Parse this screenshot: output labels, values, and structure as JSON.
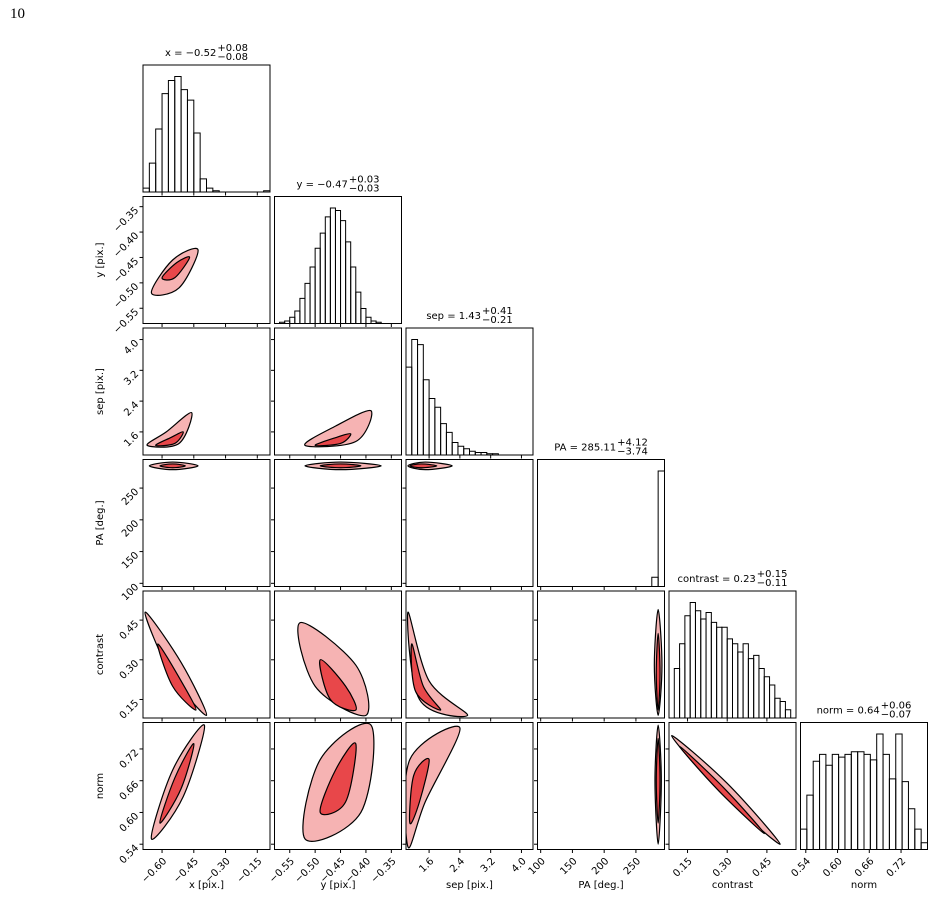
{
  "page_number": "10",
  "chart_data": {
    "type": "corner",
    "hist_color": "#000000",
    "contour_colors": [
      "#f6b3b3",
      "#e8474a"
    ],
    "variables": [
      {
        "label": "x [pix.]",
        "title": "x = −0.52",
        "title_plus": "+0.08",
        "title_minus": "−0.08",
        "xlim": [
          -0.69,
          -0.09
        ],
        "ticks": [
          {
            "value": -0.6,
            "label": "−0.60"
          },
          {
            "value": -0.45,
            "label": "−0.45"
          },
          {
            "value": -0.3,
            "label": "−0.30"
          },
          {
            "value": -0.15,
            "label": "−0.15"
          }
        ],
        "bins": [
          -0.69,
          -0.66,
          -0.63,
          -0.6,
          -0.57,
          -0.54,
          -0.51,
          -0.48,
          -0.45,
          -0.42,
          -0.39,
          -0.36,
          -0.33,
          -0.3,
          -0.27,
          -0.24,
          -0.21,
          -0.18,
          -0.15,
          -0.12,
          -0.09
        ],
        "counts": [
          3,
          22,
          48,
          75,
          85,
          88,
          78,
          70,
          45,
          10,
          3,
          1,
          0,
          0,
          0,
          0,
          0,
          0,
          0,
          1
        ],
        "contours": []
      },
      {
        "label": "y [pix.]",
        "title": "y = −0.47",
        "title_plus": "+0.03",
        "title_minus": "−0.03",
        "xlim": [
          -0.58,
          -0.33
        ],
        "ticks": [
          {
            "value": -0.55,
            "label": "−0.55"
          },
          {
            "value": -0.5,
            "label": "−0.50"
          },
          {
            "value": -0.45,
            "label": "−0.45"
          },
          {
            "value": -0.4,
            "label": "−0.40"
          },
          {
            "value": -0.35,
            "label": "−0.35"
          }
        ],
        "bins": [
          -0.58,
          -0.57,
          -0.56,
          -0.55,
          -0.54,
          -0.53,
          -0.52,
          -0.51,
          -0.5,
          -0.49,
          -0.48,
          -0.47,
          -0.46,
          -0.45,
          -0.44,
          -0.43,
          -0.42,
          -0.41,
          -0.4,
          -0.39,
          -0.38,
          -0.37,
          -0.36,
          -0.35,
          -0.34,
          -0.33
        ],
        "counts": [
          0,
          1,
          2,
          5,
          10,
          20,
          32,
          45,
          60,
          72,
          85,
          92,
          90,
          82,
          65,
          45,
          25,
          12,
          5,
          2,
          1,
          0,
          0,
          0,
          0
        ],
        "contours": [
          [
            [
              [
                -0.65,
                -0.52
              ],
              [
                -0.55,
                -0.455
              ],
              [
                -0.43,
                -0.435
              ],
              [
                -0.52,
                -0.51
              ]
            ],
            [
              [
                -0.6,
                -0.49
              ],
              [
                -0.53,
                -0.46
              ],
              [
                -0.47,
                -0.45
              ],
              [
                -0.54,
                -0.49
              ]
            ]
          ]
        ]
      },
      {
        "label": "sep [pix.]",
        "title": "sep = 1.43",
        "title_plus": "+0.41",
        "title_minus": "−0.21",
        "xlim": [
          1.0,
          4.3
        ],
        "ticks": [
          1.6,
          2.4,
          3.2,
          {
            "value": 4.0,
            "label": "4.0"
          }
        ],
        "bins": [
          1.0,
          1.15,
          1.3,
          1.45,
          1.6,
          1.75,
          1.9,
          2.05,
          2.2,
          2.35,
          2.5,
          2.65,
          2.8,
          2.95,
          3.1,
          3.25,
          3.4,
          3.55,
          3.7,
          3.85,
          4.0,
          4.15,
          4.3
        ],
        "counts": [
          70,
          92,
          88,
          60,
          45,
          38,
          25,
          18,
          10,
          7,
          5,
          3,
          2,
          2,
          1,
          1,
          0,
          0,
          0,
          0,
          0,
          0
        ],
        "contours": [
          [
            [
              [
                -0.67,
                1.25
              ],
              [
                -0.58,
                1.6
              ],
              [
                -0.46,
                2.1
              ],
              [
                -0.52,
                1.3
              ]
            ],
            [
              [
                -0.63,
                1.25
              ],
              [
                -0.56,
                1.45
              ],
              [
                -0.5,
                1.6
              ],
              [
                -0.54,
                1.3
              ]
            ]
          ],
          [
            [
              [
                -0.52,
                1.25
              ],
              [
                -0.46,
                1.75
              ],
              [
                -0.39,
                2.15
              ],
              [
                -0.42,
                1.35
              ]
            ],
            [
              [
                -0.5,
                1.25
              ],
              [
                -0.46,
                1.45
              ],
              [
                -0.43,
                1.55
              ],
              [
                -0.45,
                1.3
              ]
            ]
          ]
        ]
      },
      {
        "label": "PA [deg.]",
        "title": "PA = 285.11",
        "title_plus": "+4.12",
        "title_minus": "−3.74",
        "xlim": [
          95,
          295
        ],
        "ticks": [
          100,
          150,
          200,
          250
        ],
        "bins": [
          95,
          105,
          115,
          125,
          135,
          145,
          155,
          165,
          175,
          185,
          195,
          205,
          215,
          225,
          235,
          245,
          255,
          265,
          275,
          285,
          295
        ],
        "counts": [
          0,
          0,
          0,
          0,
          0,
          0,
          0,
          0,
          0,
          0,
          0,
          0,
          0,
          0,
          0,
          0,
          0,
          0,
          8,
          100
        ],
        "contours": [
          [
            [
              [
                -0.66,
                285
              ],
              [
                -0.55,
                291
              ],
              [
                -0.43,
                285
              ],
              [
                -0.55,
                279
              ]
            ],
            [
              [
                -0.61,
                285
              ],
              [
                -0.55,
                288
              ],
              [
                -0.49,
                285
              ],
              [
                -0.55,
                282
              ]
            ]
          ],
          [
            [
              [
                -0.52,
                285
              ],
              [
                -0.45,
                291
              ],
              [
                -0.37,
                285
              ],
              [
                -0.45,
                279
              ]
            ],
            [
              [
                -0.49,
                285
              ],
              [
                -0.45,
                288
              ],
              [
                -0.41,
                285
              ],
              [
                -0.45,
                282
              ]
            ]
          ],
          [
            [
              [
                1.05,
                285
              ],
              [
                1.5,
                291
              ],
              [
                2.2,
                285
              ],
              [
                1.5,
                279
              ]
            ],
            [
              [
                1.1,
                285
              ],
              [
                1.4,
                288
              ],
              [
                1.8,
                285
              ],
              [
                1.4,
                282
              ]
            ]
          ]
        ]
      },
      {
        "label": "contrast",
        "title": "contrast = 0.23",
        "title_plus": "+0.15",
        "title_minus": "−0.11",
        "xlim": [
          0.08,
          0.56
        ],
        "ticks": [
          0.15,
          {
            "value": 0.3,
            "label": "0.30"
          },
          0.45
        ],
        "bins": [
          0.08,
          0.1,
          0.12,
          0.14,
          0.16,
          0.18,
          0.2,
          0.22,
          0.24,
          0.26,
          0.28,
          0.3,
          0.32,
          0.34,
          0.36,
          0.38,
          0.4,
          0.42,
          0.44,
          0.46,
          0.48,
          0.5,
          0.52,
          0.54,
          0.56
        ],
        "counts": [
          0,
          30,
          45,
          62,
          70,
          65,
          60,
          64,
          58,
          55,
          55,
          48,
          45,
          40,
          45,
          36,
          38,
          30,
          25,
          20,
          12,
          10,
          5,
          0
        ],
        "contours": [
          [
            [
              [
                -0.68,
                0.48
              ],
              [
                -0.51,
                0.29
              ],
              [
                -0.39,
                0.09
              ],
              [
                -0.56,
                0.25
              ]
            ],
            [
              [
                -0.62,
                0.36
              ],
              [
                -0.51,
                0.22
              ],
              [
                -0.44,
                0.11
              ],
              [
                -0.55,
                0.2
              ]
            ]
          ],
          [
            [
              [
                -0.53,
                0.44
              ],
              [
                -0.42,
                0.28
              ],
              [
                -0.4,
                0.09
              ],
              [
                -0.5,
                0.2
              ]
            ],
            [
              [
                -0.49,
                0.3
              ],
              [
                -0.44,
                0.2
              ],
              [
                -0.42,
                0.11
              ],
              [
                -0.47,
                0.15
              ]
            ]
          ],
          [
            [
              [
                1.05,
                0.48
              ],
              [
                1.6,
                0.22
              ],
              [
                2.6,
                0.09
              ],
              [
                1.35,
                0.15
              ]
            ],
            [
              [
                1.15,
                0.36
              ],
              [
                1.45,
                0.2
              ],
              [
                1.9,
                0.11
              ],
              [
                1.25,
                0.18
              ]
            ]
          ],
          [
            [
              [
                285,
                0.49
              ],
              [
                291,
                0.28
              ],
              [
                285,
                0.09
              ],
              [
                279,
                0.28
              ]
            ],
            [
              [
                285,
                0.4
              ],
              [
                288,
                0.25
              ],
              [
                285,
                0.11
              ],
              [
                282,
                0.25
              ]
            ]
          ]
        ]
      },
      {
        "label": "norm",
        "title": "norm = 0.64",
        "title_plus": "+0.06",
        "title_minus": "−0.07",
        "xlim": [
          0.53,
          0.77
        ],
        "ticks": [
          0.54,
          {
            "value": 0.6,
            "label": "0.60"
          },
          0.66,
          0.72
        ],
        "bins": [
          0.53,
          0.542,
          0.554,
          0.566,
          0.578,
          0.59,
          0.602,
          0.614,
          0.626,
          0.638,
          0.65,
          0.662,
          0.674,
          0.686,
          0.698,
          0.71,
          0.722,
          0.734,
          0.746,
          0.758,
          0.77
        ],
        "counts": [
          15,
          40,
          65,
          70,
          62,
          70,
          68,
          70,
          72,
          72,
          70,
          66,
          85,
          70,
          52,
          85,
          50,
          30,
          15,
          5
        ],
        "contours": [
          [
            [
              [
                -0.65,
                0.55
              ],
              [
                -0.55,
                0.68
              ],
              [
                -0.4,
                0.765
              ],
              [
                -0.5,
                0.63
              ]
            ],
            [
              [
                -0.61,
                0.58
              ],
              [
                -0.54,
                0.665
              ],
              [
                -0.45,
                0.73
              ],
              [
                -0.51,
                0.645
              ]
            ]
          ],
          [
            [
              [
                -0.52,
                0.55
              ],
              [
                -0.49,
                0.7
              ],
              [
                -0.39,
                0.765
              ],
              [
                -0.41,
                0.6
              ]
            ],
            [
              [
                -0.49,
                0.6
              ],
              [
                -0.46,
                0.68
              ],
              [
                -0.42,
                0.73
              ],
              [
                -0.44,
                0.62
              ]
            ]
          ],
          [
            [
              [
                1.05,
                0.535
              ],
              [
                1.1,
                0.7
              ],
              [
                2.4,
                0.76
              ],
              [
                1.5,
                0.62
              ]
            ],
            [
              [
                1.1,
                0.58
              ],
              [
                1.2,
                0.67
              ],
              [
                1.6,
                0.7
              ],
              [
                1.35,
                0.62
              ]
            ]
          ],
          [
            [
              [
                285,
                0.54
              ],
              [
                290,
                0.66
              ],
              [
                285,
                0.765
              ],
              [
                280,
                0.66
              ]
            ],
            [
              [
                285,
                0.58
              ],
              [
                288,
                0.66
              ],
              [
                285,
                0.74
              ],
              [
                282,
                0.66
              ]
            ]
          ],
          [
            [
              [
                0.09,
                0.745
              ],
              [
                0.3,
                0.655
              ],
              [
                0.5,
                0.54
              ],
              [
                0.28,
                0.635
              ]
            ],
            [
              [
                0.12,
                0.725
              ],
              [
                0.29,
                0.645
              ],
              [
                0.44,
                0.56
              ],
              [
                0.27,
                0.64
              ]
            ]
          ]
        ]
      }
    ]
  }
}
